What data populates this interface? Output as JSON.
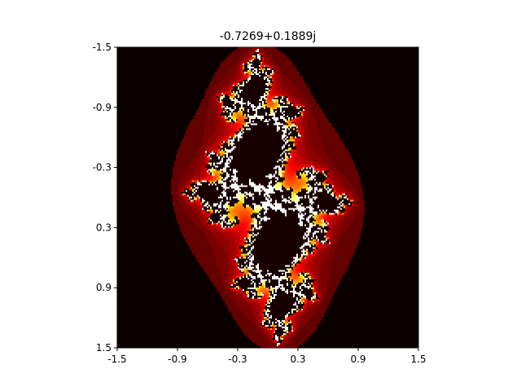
{
  "chart_data": {
    "type": "heatmap",
    "title": "-0.7269+0.1889j",
    "xlabel": "",
    "ylabel": "",
    "xlim": [
      -1.5,
      1.5
    ],
    "ylim": [
      1.5,
      -1.5
    ],
    "x_ticks": [
      "-1.5",
      "-0.9",
      "-0.3",
      "0.3",
      "0.9",
      "1.5"
    ],
    "y_ticks": [
      "-1.5",
      "-0.9",
      "-0.3",
      "0.3",
      "0.9",
      "1.5"
    ],
    "colormap": "hot",
    "background_color": "#0a0000",
    "grid": false,
    "legend": "none",
    "julia_constant": {
      "re": -0.7269,
      "im": 0.1889
    }
  }
}
